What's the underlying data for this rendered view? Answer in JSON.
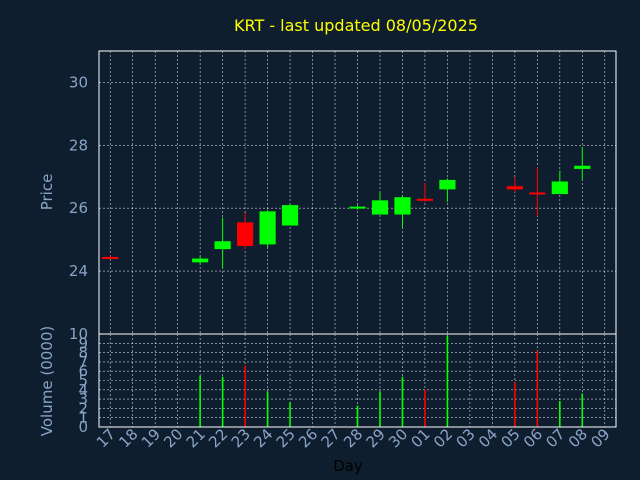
{
  "chart_data": [
    {
      "type": "candlestick",
      "title": "KRT - last updated 08/05/2025",
      "ylabel": "Price",
      "ylim": [
        22,
        31
      ],
      "yticks": [
        24,
        26,
        28,
        30
      ],
      "grid": true,
      "categories": [
        "17",
        "18",
        "19",
        "20",
        "21",
        "22",
        "23",
        "24",
        "25",
        "26",
        "27",
        "28",
        "29",
        "30",
        "01",
        "02",
        "03",
        "04",
        "05",
        "06",
        "07",
        "08",
        "09"
      ],
      "candles": [
        {
          "x": "17",
          "open": 24.45,
          "high": 24.5,
          "low": 24.4,
          "close": 24.4
        },
        {
          "x": "21",
          "open": 24.28,
          "high": 24.5,
          "low": 24.2,
          "close": 24.4
        },
        {
          "x": "22",
          "open": 24.7,
          "high": 25.7,
          "low": 24.1,
          "close": 24.95
        },
        {
          "x": "23",
          "open": 25.55,
          "high": 25.85,
          "low": 24.7,
          "close": 24.8
        },
        {
          "x": "24",
          "open": 24.85,
          "high": 25.95,
          "low": 24.75,
          "close": 25.9
        },
        {
          "x": "25",
          "open": 25.45,
          "high": 26.15,
          "low": 25.45,
          "close": 26.1
        },
        {
          "x": "28",
          "open": 26.0,
          "high": 26.1,
          "low": 25.95,
          "close": 26.05
        },
        {
          "x": "29",
          "open": 25.8,
          "high": 26.5,
          "low": 25.8,
          "close": 26.25
        },
        {
          "x": "30",
          "open": 25.8,
          "high": 26.4,
          "low": 25.4,
          "close": 26.35
        },
        {
          "x": "01",
          "open": 26.3,
          "high": 26.8,
          "low": 26.2,
          "close": 26.25
        },
        {
          "x": "02",
          "open": 26.6,
          "high": 26.95,
          "low": 26.2,
          "close": 26.9
        },
        {
          "x": "05",
          "open": 26.7,
          "high": 27.0,
          "low": 26.5,
          "close": 26.6
        },
        {
          "x": "06",
          "open": 26.5,
          "high": 27.3,
          "low": 25.75,
          "close": 26.45
        },
        {
          "x": "07",
          "open": 26.45,
          "high": 27.2,
          "low": 26.45,
          "close": 26.85
        },
        {
          "x": "08",
          "open": 27.25,
          "high": 27.95,
          "low": 26.9,
          "close": 27.35
        }
      ]
    },
    {
      "type": "bar",
      "xlabel": "Day",
      "ylabel": "Volume (0000)",
      "ylim": [
        0,
        10
      ],
      "yticks": [
        0,
        1,
        2,
        3,
        4,
        5,
        6,
        7,
        8,
        9,
        10
      ],
      "grid": true,
      "bars": [
        {
          "x": "21",
          "value": 5.5,
          "direction": "up"
        },
        {
          "x": "22",
          "value": 5.4,
          "direction": "up"
        },
        {
          "x": "23",
          "value": 6.6,
          "direction": "down"
        },
        {
          "x": "24",
          "value": 3.8,
          "direction": "up"
        },
        {
          "x": "25",
          "value": 2.7,
          "direction": "up"
        },
        {
          "x": "28",
          "value": 2.3,
          "direction": "up"
        },
        {
          "x": "29",
          "value": 3.8,
          "direction": "up"
        },
        {
          "x": "30",
          "value": 5.4,
          "direction": "up"
        },
        {
          "x": "01",
          "value": 4.0,
          "direction": "down"
        },
        {
          "x": "02",
          "value": 9.8,
          "direction": "up"
        },
        {
          "x": "05",
          "value": 4.8,
          "direction": "down"
        },
        {
          "x": "06",
          "value": 8.2,
          "direction": "down"
        },
        {
          "x": "07",
          "value": 2.8,
          "direction": "up"
        },
        {
          "x": "08",
          "value": 3.6,
          "direction": "up"
        }
      ]
    }
  ],
  "colors": {
    "background": "#0f1e2e",
    "frame": "#ffffff",
    "grid": "#ffffff",
    "title": "#ffff00",
    "axis_text": "#8aa4c8",
    "up": "#00ff00",
    "down": "#ff0000"
  }
}
